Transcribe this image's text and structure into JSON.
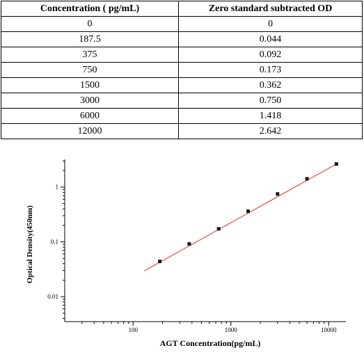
{
  "table": {
    "headers": [
      "Concentration ( pg/mL)",
      "Zero standard subtracted OD"
    ],
    "rows": [
      [
        "0",
        "0"
      ],
      [
        "187.5",
        "0.044"
      ],
      [
        "375",
        "0.092"
      ],
      [
        "750",
        "0.173"
      ],
      [
        "1500",
        "0.362"
      ],
      [
        "3000",
        "0.750"
      ],
      [
        "6000",
        "1.418"
      ],
      [
        "12000",
        "2.642"
      ]
    ]
  },
  "chart_data": {
    "type": "scatter",
    "xlabel": "AGT Concentration(pg/mL)",
    "ylabel": "Optical Density(450nm)",
    "x_scale": "log",
    "y_scale": "log",
    "xlim": [
      20,
      15000
    ],
    "ylim": [
      0.0035,
      3.2
    ],
    "x_ticks": [
      100,
      1000,
      10000
    ],
    "x_tick_labels": [
      "100",
      "1000",
      "10000"
    ],
    "y_ticks": [
      0.01,
      0.1,
      1
    ],
    "y_tick_labels": [
      "0.01",
      "0.1",
      "1"
    ],
    "grid": false,
    "points": {
      "x": [
        187.5,
        375,
        750,
        1500,
        3000,
        6000,
        12000
      ],
      "y": [
        0.044,
        0.092,
        0.173,
        0.362,
        0.75,
        1.418,
        2.642
      ]
    },
    "fit_line": {
      "x": [
        130,
        12000
      ],
      "y": [
        0.0295,
        2.642
      ]
    },
    "colors": {
      "points": "#1a1a1a",
      "fit_line": "#e0301e",
      "axes": "#000000"
    }
  }
}
